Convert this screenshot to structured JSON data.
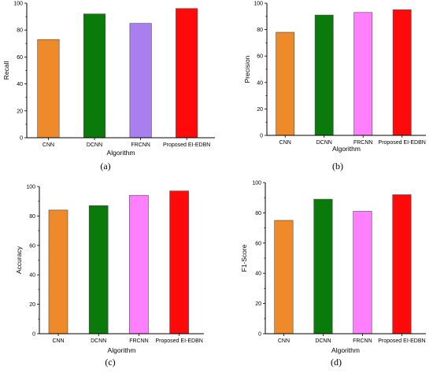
{
  "chart_data": [
    {
      "type": "bar",
      "panel_label": "(a)",
      "categories": [
        "CNN",
        "DCNN",
        "FRCNN",
        "Proposed  EI-EDBN"
      ],
      "values": [
        73,
        92,
        85,
        96
      ],
      "colors": [
        "#ee8a2a",
        "#0a7a0a",
        "#a97ff0",
        "#ff0a0a"
      ],
      "xlabel": "Algorithm",
      "ylabel": "Recall",
      "ylim": [
        0,
        100
      ],
      "yticks": [
        0,
        20,
        40,
        60,
        80,
        100
      ]
    },
    {
      "type": "bar",
      "panel_label": "(b)",
      "categories": [
        "CNN",
        "DCNN",
        "FRCNN",
        "Proposed  EI-EDBN"
      ],
      "values": [
        78,
        91,
        93,
        95
      ],
      "colors": [
        "#ee8a2a",
        "#0a7a0a",
        "#ff80ff",
        "#ff0a0a"
      ],
      "xlabel": "Algorithm",
      "ylabel": "Precision",
      "ylim": [
        0,
        100
      ],
      "yticks": [
        0,
        20,
        40,
        60,
        80,
        100
      ]
    },
    {
      "type": "bar",
      "panel_label": "(c)",
      "categories": [
        "CNN",
        "DCNN",
        "FRCNN",
        "Proposed  EI-EDBN"
      ],
      "values": [
        84,
        87,
        94,
        97
      ],
      "colors": [
        "#ee8a2a",
        "#0a7a0a",
        "#ff80ff",
        "#ff0a0a"
      ],
      "xlabel": "Algorithm",
      "ylabel": "Accuracy",
      "ylim": [
        0,
        100
      ],
      "yticks": [
        0,
        20,
        40,
        60,
        80,
        100
      ]
    },
    {
      "type": "bar",
      "panel_label": "(d)",
      "categories": [
        "CNN",
        "DCNN",
        "FRCNN",
        "Proposed  EI-EDBN"
      ],
      "values": [
        75,
        89,
        81,
        92
      ],
      "colors": [
        "#ee8a2a",
        "#0a7a0a",
        "#ff80ff",
        "#ff0a0a"
      ],
      "xlabel": "Algorithm",
      "ylabel": "F1-Score",
      "ylim": [
        0,
        100
      ],
      "yticks": [
        0,
        20,
        40,
        60,
        80,
        100
      ]
    }
  ]
}
